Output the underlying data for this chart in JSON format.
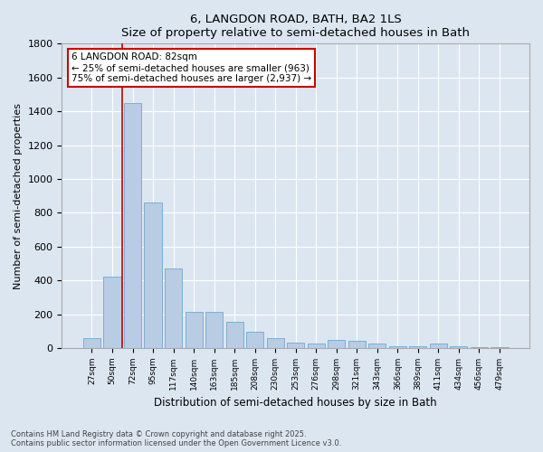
{
  "title": "6, LANGDON ROAD, BATH, BA2 1LS",
  "subtitle": "Size of property relative to semi-detached houses in Bath",
  "xlabel": "Distribution of semi-detached houses by size in Bath",
  "ylabel": "Number of semi-detached properties",
  "categories": [
    "27sqm",
    "50sqm",
    "72sqm",
    "95sqm",
    "117sqm",
    "140sqm",
    "163sqm",
    "185sqm",
    "208sqm",
    "230sqm",
    "253sqm",
    "276sqm",
    "298sqm",
    "321sqm",
    "343sqm",
    "366sqm",
    "389sqm",
    "411sqm",
    "434sqm",
    "456sqm",
    "479sqm"
  ],
  "values": [
    60,
    420,
    1450,
    860,
    470,
    215,
    215,
    155,
    95,
    60,
    35,
    25,
    50,
    45,
    25,
    12,
    12,
    25,
    12,
    5,
    5
  ],
  "bar_color": "#b8cce4",
  "bar_edge_color": "#7bafd4",
  "background_color": "#dce6f1",
  "plot_bg_color": "#dce6f1",
  "grid_color": "#ffffff",
  "vline_x_index": 1.5,
  "vline_color": "#cc0000",
  "annotation_title": "6 LANGDON ROAD: 82sqm",
  "annotation_line1": "← 25% of semi-detached houses are smaller (963)",
  "annotation_line2": "75% of semi-detached houses are larger (2,937) →",
  "annotation_box_color": "#cc0000",
  "ylim": [
    0,
    1800
  ],
  "yticks": [
    0,
    200,
    400,
    600,
    800,
    1000,
    1200,
    1400,
    1600,
    1800
  ],
  "footnote1": "Contains HM Land Registry data © Crown copyright and database right 2025.",
  "footnote2": "Contains public sector information licensed under the Open Government Licence v3.0."
}
